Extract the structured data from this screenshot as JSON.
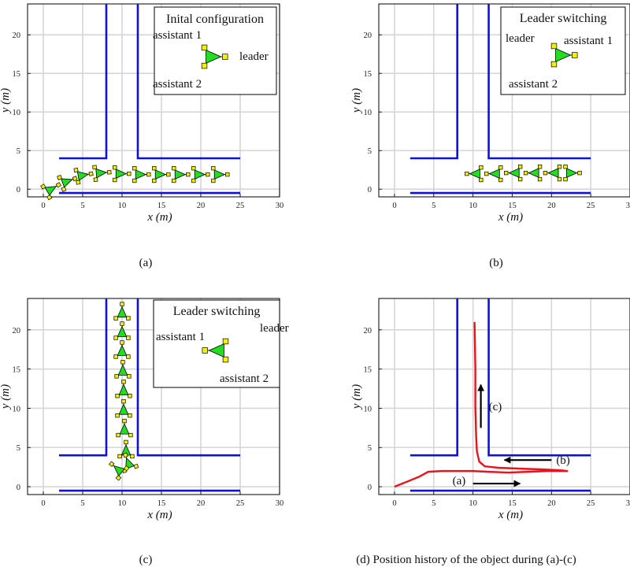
{
  "figure": {
    "captions": [
      "(a)",
      "(b)",
      "(c)",
      "(d) Position history of the object during (a)-(c)"
    ]
  },
  "colors": {
    "wall": "#1010d8",
    "path": "#e8141c",
    "robot_fill": "#22dd22",
    "robot_node": "#f2f200",
    "grid": "#d6d6d6"
  },
  "chart_data": [
    {
      "type": "other",
      "panel": "a",
      "xlabel": "x (m)",
      "ylabel": "y (m)",
      "xticks": [
        0,
        5,
        10,
        15,
        20,
        25,
        30
      ],
      "yticks": [
        0,
        5,
        10,
        15,
        20
      ],
      "xlim": [
        -2,
        30
      ],
      "ylim": [
        -1,
        24
      ],
      "grid": true,
      "walls": [
        {
          "x": [
            8,
            8,
            2
          ],
          "y": [
            24,
            4,
            4
          ]
        },
        {
          "x": [
            12,
            12,
            25
          ],
          "y": [
            24,
            4,
            4
          ]
        },
        {
          "x": [
            2,
            25
          ],
          "y": [
            -0.5,
            -0.5
          ]
        }
      ],
      "legend": {
        "title": "Inital configuration",
        "labels": [
          "assistant 1",
          "assistant 2",
          "leader"
        ],
        "placement": "top-right"
      },
      "formation_poses": [
        {
          "x": 1.0,
          "y": 0.0,
          "theta": 30
        },
        {
          "x": 3.0,
          "y": 1.0,
          "theta": 20
        },
        {
          "x": 5.0,
          "y": 1.8,
          "theta": 10
        },
        {
          "x": 7.3,
          "y": 2.1,
          "theta": 5
        },
        {
          "x": 9.8,
          "y": 2.0,
          "theta": 0
        },
        {
          "x": 12.3,
          "y": 1.9,
          "theta": 0
        },
        {
          "x": 14.8,
          "y": 1.9,
          "theta": 0
        },
        {
          "x": 17.3,
          "y": 1.9,
          "theta": 0
        },
        {
          "x": 19.8,
          "y": 1.9,
          "theta": 0
        },
        {
          "x": 22.3,
          "y": 1.9,
          "theta": 0
        }
      ]
    },
    {
      "type": "other",
      "panel": "b",
      "xlabel": "x (m)",
      "ylabel": "y (m)",
      "xticks": [
        0,
        5,
        10,
        15,
        20,
        25,
        30
      ],
      "yticks": [
        0,
        5,
        10,
        15,
        20
      ],
      "xlim": [
        -2,
        30
      ],
      "ylim": [
        -1,
        24
      ],
      "grid": true,
      "walls": [
        {
          "x": [
            8,
            8,
            2
          ],
          "y": [
            24,
            4,
            4
          ]
        },
        {
          "x": [
            12,
            12,
            25
          ],
          "y": [
            24,
            4,
            4
          ]
        },
        {
          "x": [
            2,
            25
          ],
          "y": [
            -0.5,
            -0.5
          ]
        }
      ],
      "legend": {
        "title": "Leader switching",
        "labels": [
          "leader",
          "assistant 1",
          "assistant 2"
        ],
        "placement": "top-right"
      },
      "formation_poses": [
        {
          "x": 10.3,
          "y": 2.0,
          "theta": 180
        },
        {
          "x": 12.8,
          "y": 2.0,
          "theta": 180
        },
        {
          "x": 15.3,
          "y": 2.1,
          "theta": 180
        },
        {
          "x": 17.8,
          "y": 2.1,
          "theta": 180
        },
        {
          "x": 20.3,
          "y": 2.1,
          "theta": 180
        },
        {
          "x": 22.5,
          "y": 2.1,
          "theta": 0
        }
      ]
    },
    {
      "type": "other",
      "panel": "c",
      "xlabel": "x (m)",
      "ylabel": "y (m)",
      "xticks": [
        0,
        5,
        10,
        15,
        20,
        25,
        30
      ],
      "yticks": [
        0,
        5,
        10,
        15,
        20
      ],
      "xlim": [
        -2,
        30
      ],
      "ylim": [
        -1,
        24
      ],
      "grid": true,
      "walls": [
        {
          "x": [
            8,
            8,
            2
          ],
          "y": [
            24,
            4,
            4
          ]
        },
        {
          "x": [
            12,
            12,
            25
          ],
          "y": [
            24,
            4,
            4
          ]
        },
        {
          "x": [
            2,
            25
          ],
          "y": [
            -0.5,
            -0.5
          ]
        }
      ],
      "legend": {
        "title": "Leader switching",
        "labels": [
          "assistant 1",
          "leader",
          "assistant 2"
        ],
        "placement": "top-right"
      },
      "formation_poses": [
        {
          "x": 10.0,
          "y": 22.2,
          "theta": 90
        },
        {
          "x": 10.0,
          "y": 19.7,
          "theta": 90
        },
        {
          "x": 10.0,
          "y": 17.3,
          "theta": 90
        },
        {
          "x": 10.1,
          "y": 14.8,
          "theta": 90
        },
        {
          "x": 10.2,
          "y": 12.3,
          "theta": 90
        },
        {
          "x": 10.2,
          "y": 9.8,
          "theta": 90
        },
        {
          "x": 10.3,
          "y": 7.3,
          "theta": 90
        },
        {
          "x": 10.5,
          "y": 4.6,
          "theta": 90
        },
        {
          "x": 10.8,
          "y": 3.0,
          "theta": 110
        },
        {
          "x": 9.5,
          "y": 2.2,
          "theta": 140
        }
      ]
    },
    {
      "type": "line",
      "panel": "d",
      "xlabel": "x (m)",
      "ylabel": "y (m)",
      "xticks": [
        0,
        5,
        10,
        15,
        20,
        25,
        30
      ],
      "yticks": [
        0,
        5,
        10,
        15,
        20
      ],
      "xlim": [
        -2,
        30
      ],
      "ylim": [
        -1,
        24
      ],
      "grid": true,
      "walls": [
        {
          "x": [
            8,
            8,
            2
          ],
          "y": [
            24,
            4,
            4
          ]
        },
        {
          "x": [
            12,
            12,
            25
          ],
          "y": [
            24,
            4,
            4
          ]
        },
        {
          "x": [
            2,
            25
          ],
          "y": [
            -0.5,
            -0.5
          ]
        }
      ],
      "series": [
        {
          "x": [
            0,
            1.5,
            3.2,
            4.3,
            6.0,
            8.0,
            10.0,
            12.0,
            14.5,
            17.0,
            19.5,
            21.0,
            22.0,
            21.0,
            19.0,
            16.0,
            13.5,
            11.5,
            10.8,
            10.5,
            10.4,
            10.3,
            10.3,
            10.2
          ],
          "y": [
            0,
            0.6,
            1.3,
            1.9,
            2.0,
            2.0,
            2.0,
            1.9,
            1.8,
            1.9,
            2.0,
            2.0,
            2.0,
            2.1,
            2.2,
            2.3,
            2.4,
            2.6,
            3.2,
            4.5,
            6.5,
            10.0,
            15.0,
            21.0
          ]
        }
      ],
      "annotations": [
        {
          "label": "(a)",
          "arrow_from": [
            10,
            0.4
          ],
          "arrow_to": [
            16,
            0.4
          ]
        },
        {
          "label": "(b)",
          "arrow_from": [
            20,
            3.4
          ],
          "arrow_to": [
            14,
            3.4
          ]
        },
        {
          "label": "(c)",
          "arrow_from": [
            11,
            7.5
          ],
          "arrow_to": [
            11,
            13
          ]
        }
      ]
    }
  ]
}
